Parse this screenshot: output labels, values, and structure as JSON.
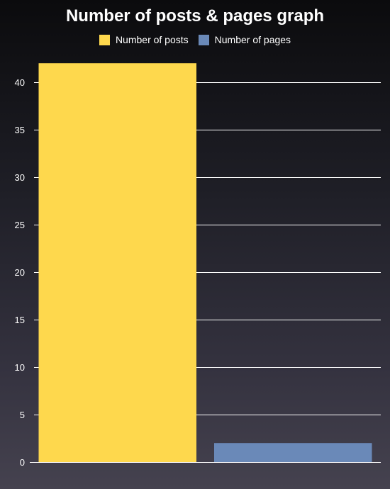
{
  "chart_data": {
    "type": "bar",
    "title": "Number of posts & pages graph",
    "categories": [
      "Number of posts",
      "Number of pages"
    ],
    "values": [
      42,
      2
    ],
    "colors": [
      "#fed84d",
      "#6a89b8"
    ],
    "legend": [
      {
        "label": "Number of posts",
        "color": "#fed84d"
      },
      {
        "label": "Number of pages",
        "color": "#6a89b8"
      }
    ],
    "legend_position": "top",
    "ylim": [
      0,
      40
    ],
    "yticks": [
      0,
      5,
      10,
      15,
      20,
      25,
      30,
      35,
      40
    ],
    "grid": true,
    "xlabel": "",
    "ylabel": ""
  },
  "colors": {
    "gridline": "#ffffff",
    "text": "#ffffff"
  }
}
